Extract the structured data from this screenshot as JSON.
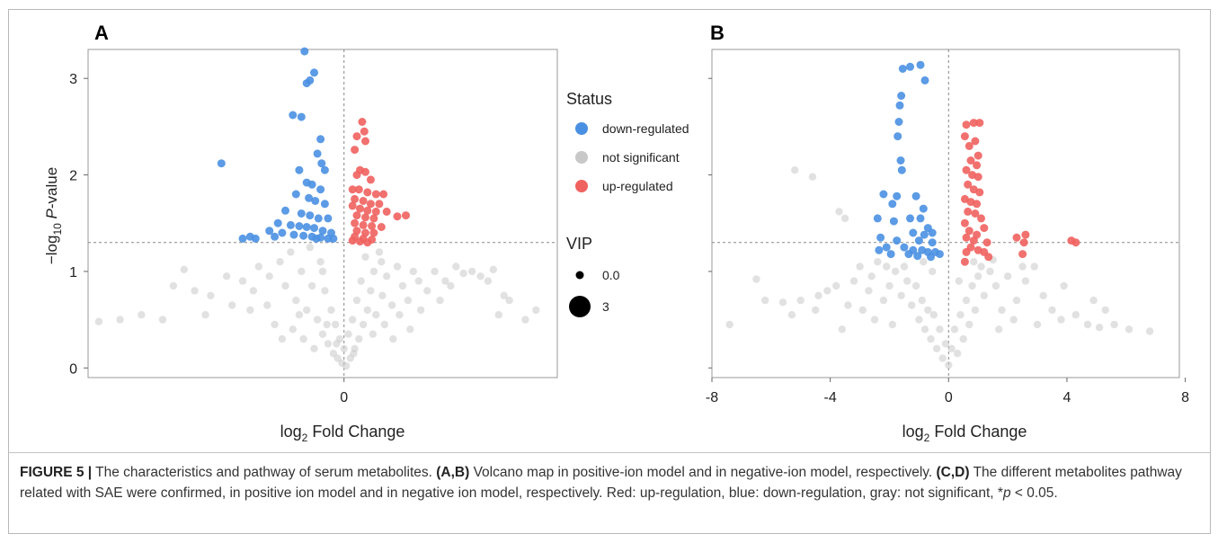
{
  "figure": {
    "caption": {
      "label": "FIGURE 5 |",
      "text1": " The characteristics and pathway of serum metabolites. ",
      "ref1": "(A,B)",
      "text2": " Volcano map in positive-ion model and in negative-ion model, respectively. ",
      "ref2": "(C,D)",
      "text3": " The different metabolites pathway related with SAE were confirmed, in positive ion model and in negative ion model, respectively. Red: up-regulation, blue: down-regulation, gray: not significant, *",
      "p_symbol": "p",
      "text4": " < 0.05."
    }
  },
  "legend": {
    "status_title": "Status",
    "status_items": [
      {
        "label": "down-regulated",
        "color": "#4a90e2"
      },
      {
        "label": "not significant",
        "color": "#c8c8c8"
      },
      {
        "label": "up-regulated",
        "color": "#f0625f"
      }
    ],
    "vip_title": "VIP",
    "vip_items": [
      {
        "label": "0.0",
        "size": 0
      },
      {
        "label": "3",
        "size": 3
      }
    ]
  },
  "chart_data": [
    {
      "panel_label": "A",
      "type": "scatter",
      "ylabel_prefix": "−log",
      "ylabel_sub": "10",
      "ylabel_var": " P",
      "ylabel_suffix": "-value",
      "xlabel_prefix": "log",
      "xlabel_sub": "2",
      "xlabel_suffix": " Fold Change",
      "x_ticks": [
        0
      ],
      "y_ticks": [
        0,
        1,
        2,
        3
      ],
      "xlim": [
        -2.4,
        2.0
      ],
      "ylim": [
        -0.1,
        3.3
      ],
      "threshold_y": 1.3,
      "threshold_x": 0,
      "down": [
        [
          -0.37,
          3.28
        ],
        [
          -0.28,
          3.06
        ],
        [
          -0.32,
          2.98
        ],
        [
          -0.35,
          2.95
        ],
        [
          -0.48,
          2.62
        ],
        [
          -0.4,
          2.6
        ],
        [
          -1.15,
          2.12
        ],
        [
          -0.22,
          2.37
        ],
        [
          -0.25,
          2.22
        ],
        [
          -0.21,
          2.12
        ],
        [
          -0.18,
          2.05
        ],
        [
          -0.42,
          2.05
        ],
        [
          -0.35,
          1.92
        ],
        [
          -0.3,
          1.9
        ],
        [
          -0.22,
          1.85
        ],
        [
          -0.45,
          1.8
        ],
        [
          -0.33,
          1.76
        ],
        [
          -0.27,
          1.73
        ],
        [
          -0.18,
          1.7
        ],
        [
          -0.55,
          1.63
        ],
        [
          -0.4,
          1.6
        ],
        [
          -0.32,
          1.58
        ],
        [
          -0.24,
          1.55
        ],
        [
          -0.15,
          1.55
        ],
        [
          -0.62,
          1.5
        ],
        [
          -0.5,
          1.48
        ],
        [
          -0.42,
          1.47
        ],
        [
          -0.35,
          1.46
        ],
        [
          -0.28,
          1.45
        ],
        [
          -0.2,
          1.42
        ],
        [
          -0.12,
          1.4
        ],
        [
          -0.7,
          1.42
        ],
        [
          -0.58,
          1.4
        ],
        [
          -0.47,
          1.38
        ],
        [
          -0.38,
          1.37
        ],
        [
          -0.3,
          1.36
        ],
        [
          -0.22,
          1.35
        ],
        [
          -0.15,
          1.34
        ],
        [
          -0.88,
          1.36
        ],
        [
          -0.95,
          1.34
        ],
        [
          -0.83,
          1.34
        ],
        [
          -0.65,
          1.36
        ],
        [
          -0.1,
          1.34
        ],
        [
          -0.26,
          1.34
        ]
      ],
      "up": [
        [
          0.17,
          2.55
        ],
        [
          0.19,
          2.45
        ],
        [
          0.12,
          2.4
        ],
        [
          0.2,
          2.35
        ],
        [
          0.1,
          2.26
        ],
        [
          0.15,
          2.05
        ],
        [
          0.2,
          2.03
        ],
        [
          0.12,
          2.0
        ],
        [
          0.25,
          1.95
        ],
        [
          0.08,
          1.85
        ],
        [
          0.14,
          1.85
        ],
        [
          0.22,
          1.82
        ],
        [
          0.3,
          1.8
        ],
        [
          0.37,
          1.8
        ],
        [
          0.1,
          1.75
        ],
        [
          0.18,
          1.73
        ],
        [
          0.25,
          1.7
        ],
        [
          0.33,
          1.7
        ],
        [
          0.08,
          1.68
        ],
        [
          0.15,
          1.65
        ],
        [
          0.22,
          1.63
        ],
        [
          0.3,
          1.62
        ],
        [
          0.4,
          1.62
        ],
        [
          0.12,
          1.58
        ],
        [
          0.2,
          1.56
        ],
        [
          0.28,
          1.55
        ],
        [
          0.5,
          1.57
        ],
        [
          0.58,
          1.58
        ],
        [
          0.1,
          1.5
        ],
        [
          0.18,
          1.48
        ],
        [
          0.26,
          1.47
        ],
        [
          0.35,
          1.46
        ],
        [
          0.12,
          1.42
        ],
        [
          0.2,
          1.4
        ],
        [
          0.28,
          1.4
        ],
        [
          0.1,
          1.36
        ],
        [
          0.18,
          1.34
        ],
        [
          0.26,
          1.33
        ],
        [
          0.08,
          1.32
        ],
        [
          0.15,
          1.31
        ],
        [
          0.22,
          1.3
        ]
      ],
      "not_significant": [
        [
          -2.1,
          0.5
        ],
        [
          -1.9,
          0.55
        ],
        [
          -1.7,
          0.5
        ],
        [
          -2.3,
          0.48
        ],
        [
          -1.6,
          0.85
        ],
        [
          -1.4,
          0.8
        ],
        [
          -1.25,
          0.75
        ],
        [
          -1.5,
          1.02
        ],
        [
          -1.1,
          0.95
        ],
        [
          -0.95,
          0.9
        ],
        [
          -0.85,
          0.8
        ],
        [
          -0.8,
          1.05
        ],
        [
          -0.7,
          0.95
        ],
        [
          -0.6,
          1.1
        ],
        [
          -0.55,
          0.85
        ],
        [
          -0.5,
          1.2
        ],
        [
          -0.45,
          0.7
        ],
        [
          -0.4,
          1.0
        ],
        [
          -0.35,
          0.6
        ],
        [
          -0.32,
          1.25
        ],
        [
          -0.3,
          0.85
        ],
        [
          -0.25,
          0.5
        ],
        [
          -0.22,
          1.1
        ],
        [
          -0.2,
          0.35
        ],
        [
          -0.18,
          0.8
        ],
        [
          -0.15,
          0.25
        ],
        [
          -0.12,
          0.6
        ],
        [
          -0.1,
          0.15
        ],
        [
          -0.08,
          0.45
        ],
        [
          -0.06,
          0.1
        ],
        [
          -0.04,
          0.3
        ],
        [
          -0.02,
          0.05
        ],
        [
          0.0,
          0.2
        ],
        [
          0.02,
          0.02
        ],
        [
          0.04,
          0.35
        ],
        [
          0.06,
          0.1
        ],
        [
          0.08,
          0.5
        ],
        [
          0.1,
          0.2
        ],
        [
          0.12,
          0.7
        ],
        [
          0.14,
          0.3
        ],
        [
          0.16,
          0.9
        ],
        [
          0.18,
          0.45
        ],
        [
          0.2,
          1.15
        ],
        [
          0.22,
          0.6
        ],
        [
          0.25,
          0.8
        ],
        [
          0.28,
          1.0
        ],
        [
          0.3,
          0.55
        ],
        [
          0.33,
          1.2
        ],
        [
          0.36,
          0.75
        ],
        [
          0.4,
          0.95
        ],
        [
          0.45,
          0.65
        ],
        [
          0.5,
          1.05
        ],
        [
          0.55,
          0.85
        ],
        [
          0.6,
          0.7
        ],
        [
          0.65,
          1.0
        ],
        [
          0.7,
          0.9
        ],
        [
          0.78,
          0.8
        ],
        [
          0.85,
          1.0
        ],
        [
          0.95,
          0.9
        ],
        [
          1.05,
          1.05
        ],
        [
          1.12,
          0.98
        ],
        [
          1.2,
          1.0
        ],
        [
          1.28,
          0.95
        ],
        [
          1.35,
          0.9
        ],
        [
          1.5,
          0.75
        ],
        [
          1.45,
          0.55
        ],
        [
          1.7,
          0.5
        ],
        [
          1.55,
          0.7
        ],
        [
          1.8,
          0.6
        ],
        [
          -0.88,
          0.6
        ],
        [
          -0.65,
          0.45
        ],
        [
          -0.48,
          0.4
        ],
        [
          -0.38,
          0.3
        ],
        [
          -0.28,
          0.2
        ],
        [
          -0.16,
          0.45
        ],
        [
          -0.07,
          0.25
        ],
        [
          0.09,
          0.15
        ],
        [
          0.27,
          0.35
        ],
        [
          0.38,
          0.45
        ],
        [
          0.52,
          0.55
        ],
        [
          0.72,
          0.6
        ],
        [
          0.62,
          0.4
        ],
        [
          -0.72,
          0.65
        ],
        [
          -1.05,
          0.65
        ],
        [
          -1.3,
          0.55
        ],
        [
          0.9,
          0.7
        ],
        [
          1.0,
          0.85
        ],
        [
          1.4,
          1.02
        ],
        [
          -0.2,
          1.0
        ],
        [
          0.35,
          1.1
        ],
        [
          -0.42,
          0.55
        ],
        [
          0.46,
          0.3
        ],
        [
          -0.58,
          0.3
        ]
      ]
    },
    {
      "panel_label": "B",
      "type": "scatter",
      "xlabel_prefix": "log",
      "xlabel_sub": "2",
      "xlabel_suffix": " Fold Change",
      "x_ticks": [
        -8,
        -4,
        0,
        4,
        8
      ],
      "xlim": [
        -8.0,
        7.8
      ],
      "ylim": [
        -0.1,
        3.3
      ],
      "threshold_y": 1.3,
      "threshold_x": 0,
      "down": [
        [
          -1.55,
          3.1
        ],
        [
          -1.3,
          3.12
        ],
        [
          -0.95,
          3.14
        ],
        [
          -0.8,
          2.98
        ],
        [
          -1.6,
          2.82
        ],
        [
          -1.65,
          2.72
        ],
        [
          -1.68,
          2.55
        ],
        [
          -1.72,
          2.4
        ],
        [
          -1.62,
          2.15
        ],
        [
          -1.58,
          2.05
        ],
        [
          -2.2,
          1.8
        ],
        [
          -1.75,
          1.78
        ],
        [
          -1.9,
          1.7
        ],
        [
          -2.4,
          1.55
        ],
        [
          -1.85,
          1.52
        ],
        [
          -1.1,
          1.78
        ],
        [
          -0.85,
          1.65
        ],
        [
          -1.3,
          1.55
        ],
        [
          -0.95,
          1.55
        ],
        [
          -0.7,
          1.45
        ],
        [
          -0.55,
          1.4
        ],
        [
          -1.2,
          1.4
        ],
        [
          -0.82,
          1.38
        ],
        [
          -1.0,
          1.32
        ],
        [
          -2.3,
          1.35
        ],
        [
          -1.75,
          1.32
        ],
        [
          -0.55,
          1.3
        ],
        [
          -2.1,
          1.25
        ],
        [
          -1.5,
          1.25
        ],
        [
          -1.2,
          1.22
        ],
        [
          -0.9,
          1.22
        ],
        [
          -0.7,
          1.2
        ],
        [
          -0.45,
          1.2
        ],
        [
          -1.95,
          1.18
        ],
        [
          -1.35,
          1.18
        ],
        [
          -0.3,
          1.18
        ],
        [
          -2.35,
          1.22
        ],
        [
          -1.05,
          1.16
        ],
        [
          -0.6,
          1.15
        ]
      ],
      "up": [
        [
          0.6,
          2.52
        ],
        [
          0.85,
          2.54
        ],
        [
          1.05,
          2.54
        ],
        [
          0.55,
          2.4
        ],
        [
          0.9,
          2.35
        ],
        [
          0.7,
          2.3
        ],
        [
          1.0,
          2.2
        ],
        [
          0.75,
          2.15
        ],
        [
          0.95,
          2.1
        ],
        [
          0.6,
          2.05
        ],
        [
          0.8,
          2.0
        ],
        [
          1.0,
          1.98
        ],
        [
          0.65,
          1.9
        ],
        [
          0.85,
          1.85
        ],
        [
          1.05,
          1.82
        ],
        [
          0.55,
          1.75
        ],
        [
          0.75,
          1.72
        ],
        [
          0.95,
          1.7
        ],
        [
          0.65,
          1.62
        ],
        [
          0.9,
          1.6
        ],
        [
          1.1,
          1.55
        ],
        [
          1.2,
          1.45
        ],
        [
          0.55,
          1.5
        ],
        [
          0.7,
          1.42
        ],
        [
          0.95,
          1.38
        ],
        [
          0.6,
          1.35
        ],
        [
          0.85,
          1.32
        ],
        [
          1.3,
          1.3
        ],
        [
          0.75,
          1.25
        ],
        [
          1.0,
          1.22
        ],
        [
          1.2,
          1.2
        ],
        [
          0.6,
          1.2
        ],
        [
          2.3,
          1.35
        ],
        [
          2.6,
          1.38
        ],
        [
          2.55,
          1.3
        ],
        [
          2.5,
          1.18
        ],
        [
          4.15,
          1.32
        ],
        [
          4.3,
          1.3
        ],
        [
          0.55,
          1.1
        ],
        [
          1.35,
          1.15
        ]
      ],
      "not_significant": [
        [
          -5.2,
          2.05
        ],
        [
          -4.6,
          1.98
        ],
        [
          -3.7,
          1.62
        ],
        [
          -3.5,
          1.55
        ],
        [
          -6.5,
          0.92
        ],
        [
          -7.4,
          0.45
        ],
        [
          -6.2,
          0.7
        ],
        [
          -5.6,
          0.68
        ],
        [
          -5.0,
          0.7
        ],
        [
          -4.4,
          0.75
        ],
        [
          -4.1,
          0.8
        ],
        [
          -3.8,
          0.85
        ],
        [
          -3.4,
          0.65
        ],
        [
          -3.2,
          0.9
        ],
        [
          -3.0,
          1.05
        ],
        [
          -2.9,
          0.6
        ],
        [
          -2.7,
          0.8
        ],
        [
          -2.6,
          0.95
        ],
        [
          -2.4,
          1.1
        ],
        [
          -2.2,
          0.7
        ],
        [
          -2.0,
          0.85
        ],
        [
          -1.8,
          1.0
        ],
        [
          -1.6,
          0.75
        ],
        [
          -1.4,
          0.9
        ],
        [
          -1.25,
          0.65
        ],
        [
          -1.1,
          0.85
        ],
        [
          -1.0,
          0.5
        ],
        [
          -0.9,
          0.7
        ],
        [
          -0.8,
          0.4
        ],
        [
          -0.7,
          0.6
        ],
        [
          -0.6,
          0.3
        ],
        [
          -0.5,
          0.55
        ],
        [
          -0.4,
          0.2
        ],
        [
          -0.3,
          0.4
        ],
        [
          -0.2,
          0.1
        ],
        [
          -0.1,
          0.25
        ],
        [
          0.0,
          0.03
        ],
        [
          0.1,
          0.2
        ],
        [
          0.2,
          0.4
        ],
        [
          0.3,
          0.15
        ],
        [
          0.4,
          0.55
        ],
        [
          0.5,
          0.3
        ],
        [
          0.6,
          0.7
        ],
        [
          0.7,
          0.45
        ],
        [
          0.8,
          0.85
        ],
        [
          0.9,
          0.6
        ],
        [
          1.0,
          0.95
        ],
        [
          1.2,
          0.75
        ],
        [
          1.4,
          1.0
        ],
        [
          1.6,
          0.85
        ],
        [
          1.8,
          0.6
        ],
        [
          2.0,
          0.95
        ],
        [
          2.3,
          0.7
        ],
        [
          2.6,
          0.9
        ],
        [
          2.9,
          1.05
        ],
        [
          3.2,
          0.75
        ],
        [
          3.5,
          0.6
        ],
        [
          3.9,
          0.85
        ],
        [
          4.3,
          0.55
        ],
        [
          4.7,
          0.45
        ],
        [
          5.1,
          0.42
        ],
        [
          5.6,
          0.45
        ],
        [
          6.1,
          0.4
        ],
        [
          6.8,
          0.38
        ],
        [
          3.8,
          0.5
        ],
        [
          4.9,
          0.7
        ],
        [
          5.3,
          0.6
        ],
        [
          -4.5,
          0.6
        ],
        [
          -5.3,
          0.55
        ],
        [
          1.1,
          1.05
        ],
        [
          1.5,
          1.12
        ],
        [
          0.35,
          0.9
        ],
        [
          -0.55,
          1.0
        ],
        [
          -1.5,
          1.05
        ],
        [
          -2.5,
          0.5
        ],
        [
          2.2,
          0.5
        ],
        [
          3.0,
          0.45
        ],
        [
          -3.6,
          0.4
        ],
        [
          -1.9,
          0.45
        ],
        [
          1.7,
          0.4
        ],
        [
          0.85,
          1.1
        ],
        [
          -0.85,
          1.1
        ],
        [
          -2.1,
          1.05
        ],
        [
          2.5,
          1.05
        ]
      ]
    }
  ]
}
